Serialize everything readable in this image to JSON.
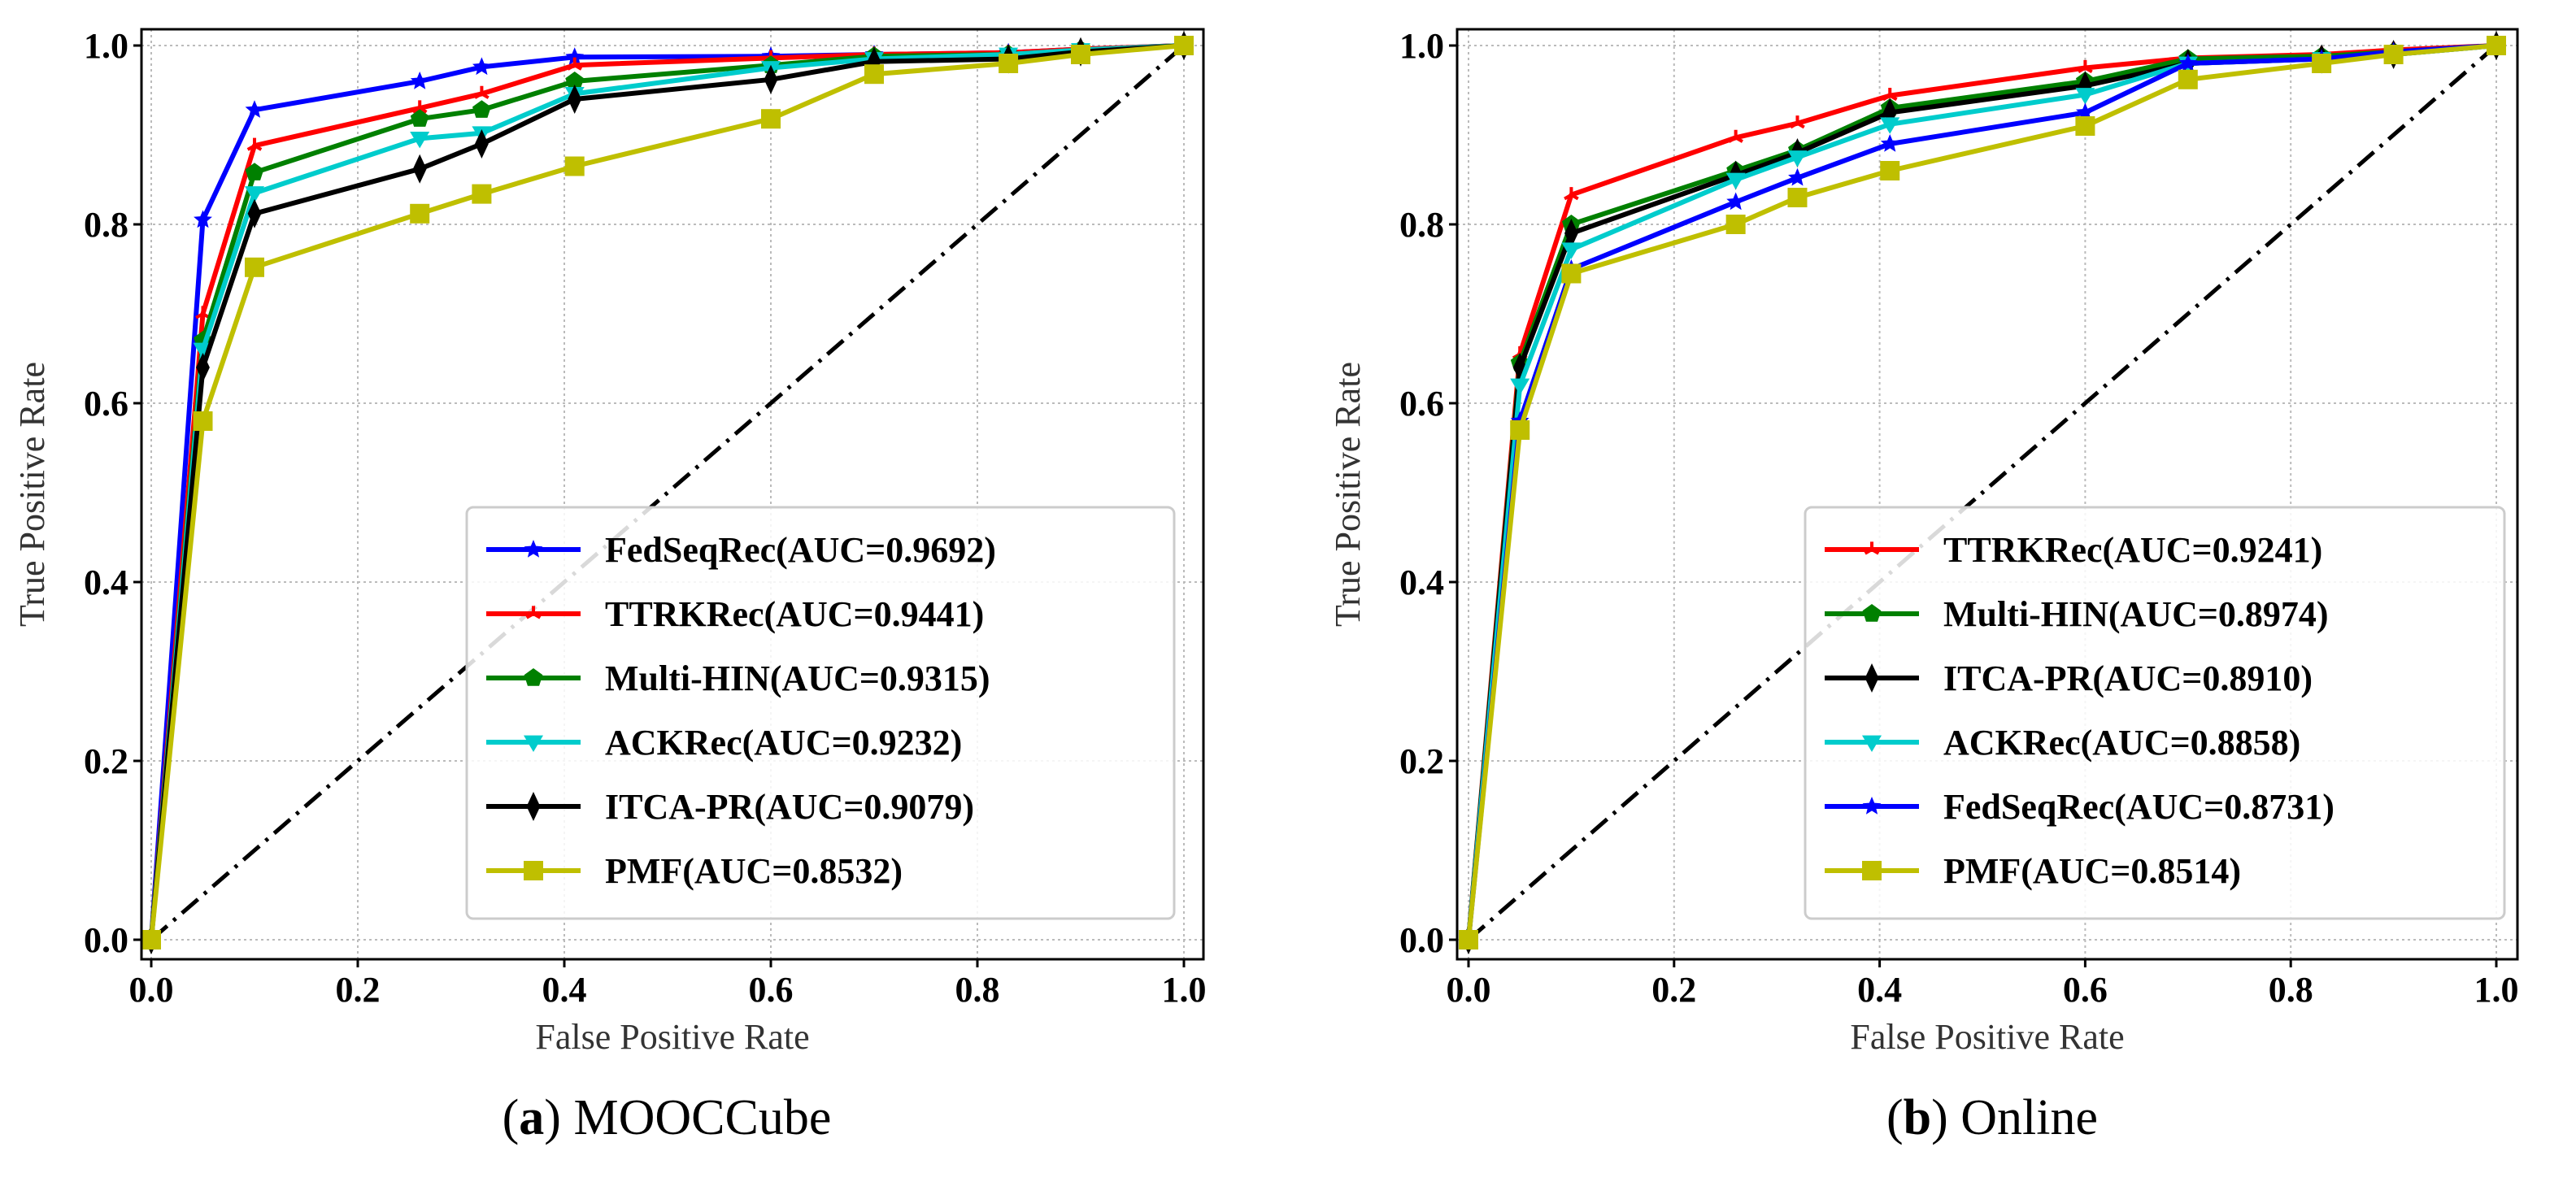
{
  "chart_data": [
    {
      "type": "line",
      "caption_letter": "a",
      "caption_text": " MOOCCube",
      "xlabel": "False Positive Rate",
      "ylabel": "True Positive Rate",
      "xlim": [
        0,
        1
      ],
      "ylim": [
        0,
        1
      ],
      "xticks": [
        "0.0",
        "0.2",
        "0.4",
        "0.6",
        "0.8",
        "1.0"
      ],
      "yticks": [
        "0.0",
        "0.2",
        "0.4",
        "0.6",
        "0.8",
        "1.0"
      ],
      "grid": true,
      "legend_position": "lower-right",
      "x": [
        0,
        0.05,
        0.1,
        0.26,
        0.32,
        0.41,
        0.6,
        0.7,
        0.83,
        0.9,
        1.0
      ],
      "series": [
        {
          "name": "FedSeqRec(AUC=0.9692)",
          "color": "#0000ff",
          "marker": "star",
          "values": [
            0,
            0.805,
            0.928,
            0.96,
            0.976,
            0.987,
            0.988,
            0.99,
            0.992,
            0.996,
            1
          ]
        },
        {
          "name": "TTRKRec(AUC=0.9441)",
          "color": "#ff0000",
          "marker": "tri",
          "values": [
            0,
            0.7,
            0.888,
            0.93,
            0.946,
            0.978,
            0.986,
            0.99,
            0.992,
            0.996,
            1
          ]
        },
        {
          "name": "Multi-HIN(AUC=0.9315)",
          "color": "#008000",
          "marker": "pentagon",
          "values": [
            0,
            0.67,
            0.858,
            0.918,
            0.928,
            0.96,
            0.978,
            0.988,
            0.99,
            0.995,
            1
          ]
        },
        {
          "name": "ACKRec(AUC=0.9232)",
          "color": "#00cccc",
          "marker": "tri_down",
          "values": [
            0,
            0.66,
            0.835,
            0.896,
            0.902,
            0.946,
            0.975,
            0.985,
            0.99,
            0.995,
            1
          ]
        },
        {
          "name": "ITCA-PR(AUC=0.9079)",
          "color": "#000000",
          "marker": "diamond",
          "values": [
            0,
            0.64,
            0.812,
            0.862,
            0.89,
            0.94,
            0.962,
            0.982,
            0.985,
            0.993,
            1
          ]
        },
        {
          "name": "PMF(AUC=0.8532)",
          "color": "#bfbf00",
          "marker": "square",
          "values": [
            0,
            0.58,
            0.752,
            0.812,
            0.834,
            0.865,
            0.918,
            0.968,
            0.98,
            0.99,
            1
          ]
        }
      ]
    },
    {
      "type": "line",
      "caption_letter": "b",
      "caption_text": " Online",
      "xlabel": "False Positive Rate",
      "ylabel": "True Positive Rate",
      "xlim": [
        0,
        1
      ],
      "ylim": [
        0,
        1
      ],
      "xticks": [
        "0.0",
        "0.2",
        "0.4",
        "0.6",
        "0.8",
        "1.0"
      ],
      "yticks": [
        "0.0",
        "0.2",
        "0.4",
        "0.6",
        "0.8",
        "1.0"
      ],
      "grid": true,
      "legend_position": "lower-right",
      "x": [
        0,
        0.05,
        0.1,
        0.26,
        0.32,
        0.41,
        0.6,
        0.7,
        0.83,
        0.9,
        1.0
      ],
      "series": [
        {
          "name": "TTRKRec(AUC=0.9241)",
          "color": "#ff0000",
          "marker": "tri",
          "values": [
            0,
            0.655,
            0.833,
            0.897,
            0.913,
            0.944,
            0.975,
            0.986,
            0.99,
            0.995,
            1
          ]
        },
        {
          "name": "Multi-HIN(AUC=0.8974)",
          "color": "#008000",
          "marker": "pentagon",
          "values": [
            0,
            0.645,
            0.8,
            0.86,
            0.883,
            0.93,
            0.96,
            0.985,
            0.988,
            0.993,
            1
          ]
        },
        {
          "name": "ITCA-PR(AUC=0.8910)",
          "color": "#000000",
          "marker": "diamond",
          "values": [
            0,
            0.64,
            0.79,
            0.855,
            0.88,
            0.925,
            0.955,
            0.98,
            0.985,
            0.99,
            1
          ]
        },
        {
          "name": "ACKRec(AUC=0.8858)",
          "color": "#00cccc",
          "marker": "tri_down",
          "values": [
            0,
            0.62,
            0.772,
            0.85,
            0.875,
            0.912,
            0.945,
            0.98,
            0.985,
            0.99,
            1
          ]
        },
        {
          "name": "FedSeqRec(AUC=0.8731)",
          "color": "#0000ff",
          "marker": "star",
          "values": [
            0,
            0.58,
            0.75,
            0.825,
            0.852,
            0.89,
            0.925,
            0.98,
            0.985,
            0.993,
            1
          ]
        },
        {
          "name": "PMF(AUC=0.8514)",
          "color": "#bfbf00",
          "marker": "square",
          "values": [
            0,
            0.57,
            0.745,
            0.8,
            0.83,
            0.86,
            0.91,
            0.962,
            0.98,
            0.99,
            1
          ]
        }
      ]
    }
  ]
}
